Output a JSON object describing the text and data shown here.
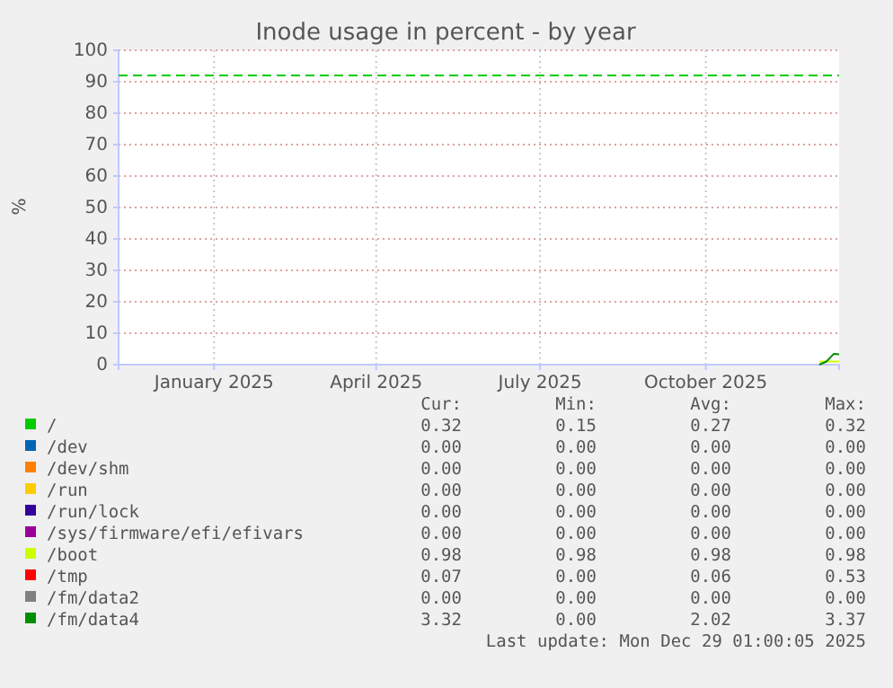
{
  "chart_data": {
    "type": "line",
    "title": "Inode usage in percent - by year",
    "ylabel": "%",
    "xlim": [
      "2024-11-24",
      "2025-12-29"
    ],
    "xticks": [
      {
        "value": "2025-01-16",
        "label": "January 2025"
      },
      {
        "value": "2025-04-16",
        "label": "April 2025"
      },
      {
        "value": "2025-07-16",
        "label": "July 2025"
      },
      {
        "value": "2025-10-16",
        "label": "October 2025"
      }
    ],
    "ylim": [
      0,
      100
    ],
    "yticks": [
      0,
      10,
      20,
      30,
      40,
      50,
      60,
      70,
      80,
      90,
      100
    ],
    "grid": true,
    "legend": "bottom",
    "ref_lines": [
      {
        "axis": "y",
        "value": 92,
        "color": "#00cc00",
        "line_style": "dashed"
      }
    ],
    "x": [
      "2025-12-18",
      "2025-12-22",
      "2025-12-26",
      "2025-12-29"
    ],
    "series": [
      {
        "name": "/",
        "color": "#00cc00",
        "values": [
          null,
          null,
          null,
          null
        ]
      },
      {
        "name": "/dev",
        "color": "#0066b3",
        "values": [
          null,
          null,
          null,
          null
        ]
      },
      {
        "name": "/dev/shm",
        "color": "#ff8000",
        "values": [
          null,
          null,
          null,
          null
        ]
      },
      {
        "name": "/run",
        "color": "#ffcc00",
        "values": [
          null,
          null,
          null,
          null
        ]
      },
      {
        "name": "/run/lock",
        "color": "#330099",
        "values": [
          null,
          null,
          null,
          null
        ]
      },
      {
        "name": "/sys/firmware/efi/efivars",
        "color": "#990099",
        "values": [
          null,
          null,
          null,
          null
        ]
      },
      {
        "name": "/boot",
        "color": "#ccff00",
        "values": [
          1,
          1,
          1,
          1
        ]
      },
      {
        "name": "/tmp",
        "color": "#ff0000",
        "values": [
          null,
          null,
          null,
          null
        ]
      },
      {
        "name": "/fm/data2",
        "color": "#808080",
        "values": [
          null,
          null,
          null,
          null
        ]
      },
      {
        "name": "/fm/data4",
        "color": "#008f00",
        "values": [
          0,
          1,
          3.4,
          3.3
        ]
      }
    ],
    "annotations": [
      "Cur: Min: Avg: Max:",
      "0.32 0.15 0.27 0.32",
      "0.00 0.00 0.00 0.00",
      "0.00 0.00 0.00 0.00",
      "0.00 0.00 0.00 0.00",
      "0.00 0.00 0.00 0.00",
      "0.00 0.00 0.00 0.00",
      "0.98 0.98 0.98 0.98",
      "0.07 0.00 0.06 0.53",
      "0.00 0.00 0.00 0.00",
      "3.32 0.00 2.02 3.37",
      "Last update: Mon Dec 29 01:00:05 2025"
    ]
  }
}
